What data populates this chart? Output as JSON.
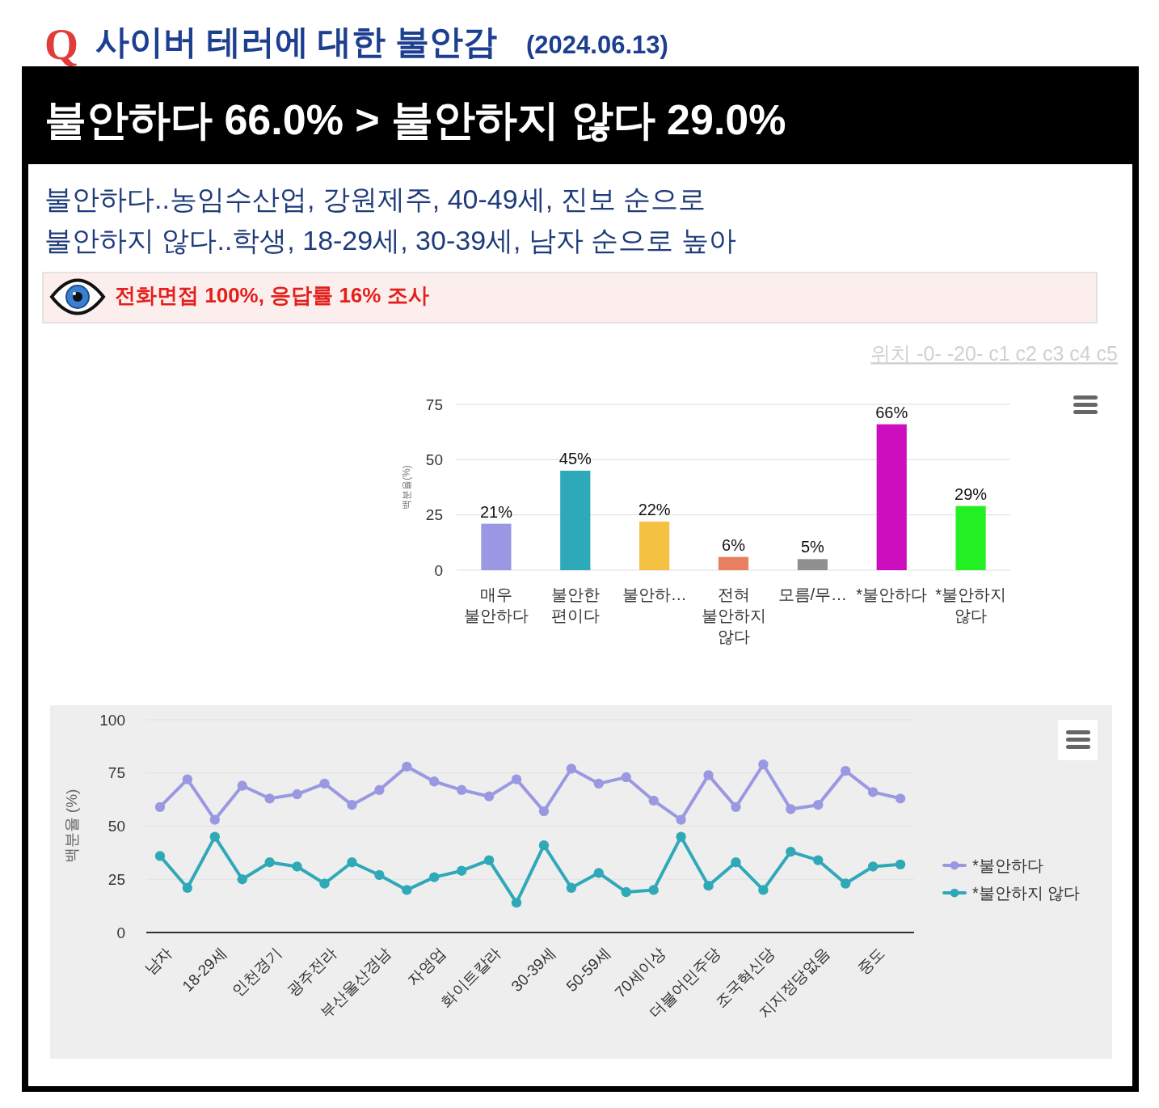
{
  "chart_data": [
    {
      "type": "bar",
      "title": "사이버 테러에 대한 불안감",
      "subtitle": "불안하다 66.0% > 불안하지 않다 29.0%",
      "annotations": [
        "Q",
        "(2024.06.13)",
        "불안하다..농임수산업, 강원제주, 40-49세, 진보 순으로",
        "불안하지 않다..학생, 18-29세, 30-39세, 남자 순으로 높아",
        "전화면접 100%, 응답률 16% 조사",
        "위치 -0- -20- c1 c2 c3 c4 c5"
      ],
      "ylabel": "백분율(%)",
      "categories": [
        "매우 불안하다",
        "불안한 편이다",
        "불안하…",
        "전혀 불안하지 않다",
        "모름/무…",
        "*불안하다",
        "*불안하지 않다"
      ],
      "values": [
        21,
        45,
        22,
        6,
        5,
        66,
        29
      ],
      "colors": [
        "#9b97e3",
        "#2ea9b9",
        "#f5c142",
        "#e8805f",
        "#8f8f8f",
        "#cc0ebe",
        "#22f022"
      ],
      "value_labels": [
        "21%",
        "45%",
        "22%",
        "6%",
        "5%",
        "66%",
        "29%"
      ],
      "ylim": [
        0,
        75
      ],
      "yticks": [
        0,
        25,
        50,
        75
      ],
      "grid": "y"
    },
    {
      "type": "line",
      "ylabel": "백분율 (%)",
      "categories": [
        "남자",
        null,
        "18-29세",
        null,
        "인천경기",
        null,
        "광주전라",
        null,
        "부산울산경남",
        null,
        "자영업",
        null,
        "화이트칼라",
        null,
        "30-39세",
        null,
        "50-59세",
        null,
        "70세이상",
        null,
        "더불어민주당",
        null,
        "조국혁신당",
        null,
        "지지정당없음",
        null,
        "중도",
        null
      ],
      "series": [
        {
          "name": "*불안하다",
          "color": "#9b98e2",
          "values": [
            59,
            72,
            53,
            69,
            63,
            65,
            70,
            60,
            67,
            78,
            71,
            67,
            64,
            72,
            57,
            77,
            70,
            73,
            62,
            53,
            74,
            59,
            79,
            58,
            60,
            76,
            66,
            63
          ]
        },
        {
          "name": "*불안하지 않다",
          "color": "#2fa9b8",
          "values": [
            36,
            21,
            45,
            25,
            33,
            31,
            23,
            33,
            27,
            20,
            26,
            29,
            34,
            14,
            41,
            21,
            28,
            19,
            20,
            45,
            22,
            33,
            20,
            38,
            34,
            23,
            31,
            32
          ]
        }
      ],
      "ylim": [
        0,
        100
      ],
      "yticks": [
        0,
        25,
        50,
        75,
        100
      ],
      "grid": "y",
      "legend": "right",
      "marker": "circle",
      "line_style": "solid"
    }
  ]
}
